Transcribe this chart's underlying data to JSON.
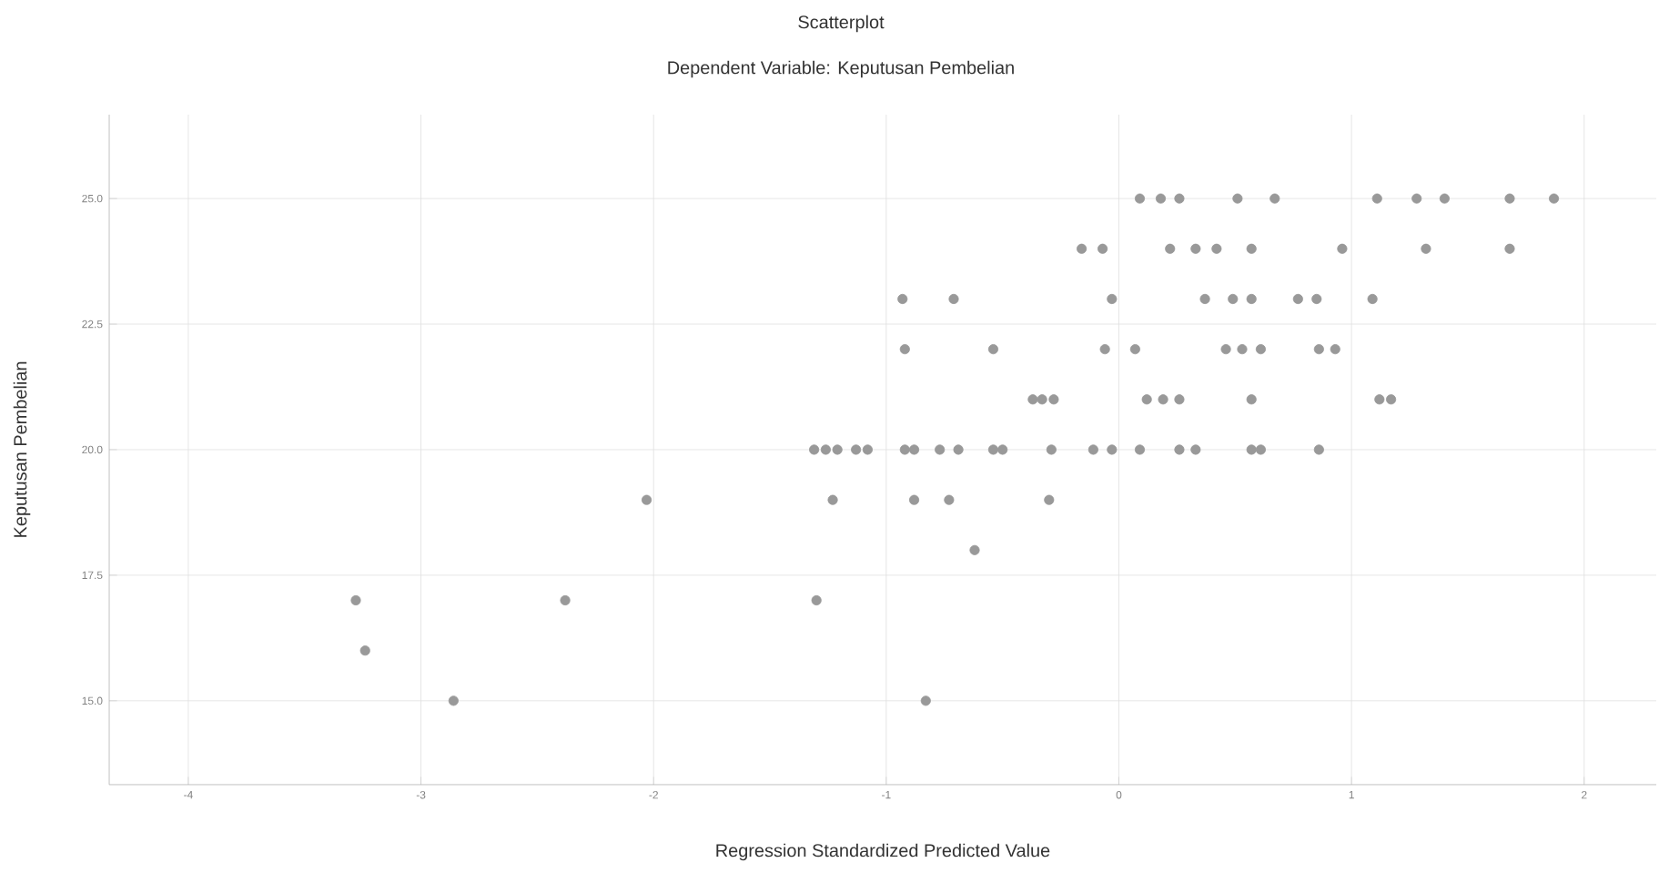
{
  "chart_data": {
    "type": "scatter",
    "title": "Scatterplot",
    "subtitle": "Dependent Variable: Keputusan Pembelian",
    "xlabel": "Regression Standardized Predicted Value",
    "ylabel": "Keputusan Pembelian",
    "xlim": [
      -4.34,
      2.31
    ],
    "ylim": [
      13.33,
      26.67
    ],
    "xticks": [
      -4,
      -3,
      -2,
      -1,
      0,
      1,
      2
    ],
    "yticks": [
      {
        "value": 15,
        "label": "15.0"
      },
      {
        "value": 17.5,
        "label": "17.5"
      },
      {
        "value": 20,
        "label": "20.0"
      },
      {
        "value": 22.5,
        "label": "22.5"
      },
      {
        "value": 25,
        "label": "25.0"
      }
    ],
    "grid": true,
    "marker": "circle",
    "series": [
      {
        "color": "#999999",
        "x": [
          0.09,
          0.18,
          0.26,
          0.51,
          0.67,
          1.11,
          1.28,
          1.4,
          1.68,
          1.87,
          -0.16,
          -0.07,
          0.22,
          0.33,
          0.42,
          0.57,
          0.96,
          1.32,
          1.68,
          -0.93,
          -0.71,
          -0.03,
          0.37,
          0.49,
          0.57,
          0.77,
          0.85,
          1.09,
          -0.92,
          -0.54,
          -0.06,
          0.07,
          0.46,
          0.53,
          0.61,
          0.86,
          0.93,
          -0.37,
          -0.33,
          -0.28,
          0.12,
          0.19,
          0.26,
          0.57,
          1.12,
          1.17,
          -1.31,
          -1.26,
          -1.21,
          -1.13,
          -1.08,
          -0.92,
          -0.88,
          -0.77,
          -0.69,
          -0.54,
          -0.5,
          -0.29,
          -0.11,
          -0.03,
          0.09,
          0.26,
          0.33,
          0.57,
          0.61,
          0.86,
          -2.03,
          -1.23,
          -0.88,
          -0.73,
          -0.3,
          -0.62,
          -3.28,
          -2.38,
          -1.3,
          -3.24,
          -2.86,
          -0.83
        ],
        "values": [
          25,
          25,
          25,
          25,
          25,
          25,
          25,
          25,
          25,
          25,
          24,
          24,
          24,
          24,
          24,
          24,
          24,
          24,
          24,
          23,
          23,
          23,
          23,
          23,
          23,
          23,
          23,
          23,
          22,
          22,
          22,
          22,
          22,
          22,
          22,
          22,
          22,
          21,
          21,
          21,
          21,
          21,
          21,
          21,
          21,
          21,
          20,
          20,
          20,
          20,
          20,
          20,
          20,
          20,
          20,
          20,
          20,
          20,
          20,
          20,
          20,
          20,
          20,
          20,
          20,
          20,
          19,
          19,
          19,
          19,
          19,
          18,
          17,
          17,
          17,
          16,
          15,
          15
        ]
      }
    ]
  }
}
